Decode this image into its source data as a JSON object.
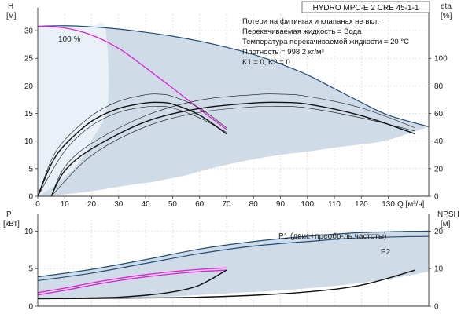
{
  "title": "HYDRO MPC-E 2 CRE 45-1-1",
  "notes": [
    "Потери на фитингах и клапанах не вкл.",
    "Перекачиваемая жидкость = Вода",
    "Температура перекачиваемой жидкости = 20 °C",
    "Плотность = 998.2 кг/м³",
    "K1 = 0, K2 = 0"
  ],
  "colors": {
    "range_fill": "#cfdbe6",
    "range_light": "#e9f0f7",
    "max_curve": "#1f4e79",
    "duty_curve": "#e020d8",
    "efficiency_curve": "#111111",
    "grid": "#cccccc"
  },
  "chart_data": [
    {
      "type": "line",
      "name": "qh",
      "xlabel": "Q [м³/ч]",
      "ylabel_left": "H\n[м]",
      "ylabel_right": "eta\n[%]",
      "xlim": [
        0,
        145
      ],
      "xticks": [
        0,
        10,
        20,
        30,
        40,
        50,
        60,
        70,
        80,
        90,
        100,
        110,
        120,
        130
      ],
      "ylim": [
        0,
        33
      ],
      "yticks": [
        0,
        5,
        10,
        15,
        20,
        25,
        30
      ],
      "y2lim": [
        0,
        132
      ],
      "y2ticks": [
        0,
        20,
        40,
        60,
        80,
        100
      ],
      "label_100": "100 %",
      "envelope_upper": {
        "x": [
          0,
          10,
          20,
          30,
          40,
          50,
          60,
          70,
          80,
          90,
          100,
          110,
          120,
          130,
          145
        ],
        "y": [
          30.8,
          30.9,
          30.7,
          30.3,
          29.7,
          29.0,
          28.1,
          27.0,
          25.7,
          24.0,
          22.0,
          19.5,
          17.0,
          14.7,
          12.6
        ]
      },
      "envelope_lower": {
        "x": [
          145,
          130,
          120,
          110,
          100,
          90,
          80,
          70,
          60,
          55,
          50,
          45,
          40,
          35,
          30,
          25,
          20,
          15,
          10,
          5,
          0
        ],
        "y": [
          12.6,
          10.2,
          9.4,
          8.8,
          8.1,
          7.5,
          6.7,
          5.7,
          4.5,
          3.8,
          3.3,
          2.8,
          2.4,
          2.1,
          1.7,
          1.3,
          0.95,
          0.6,
          0.35,
          0.12,
          0
        ]
      },
      "light_region": {
        "x": [
          0,
          5,
          10,
          15,
          20,
          25,
          26,
          20,
          15,
          10,
          5,
          0
        ],
        "y": [
          30.8,
          30.9,
          30.9,
          30.8,
          30.7,
          30.5,
          17.0,
          10.0,
          6.0,
          3.5,
          1.5,
          0
        ]
      },
      "series": [
        {
          "name": "max_curve",
          "style": "max",
          "x": [
            0,
            10,
            20,
            30,
            40,
            50,
            60,
            70,
            80,
            90,
            100,
            110,
            120,
            130,
            145
          ],
          "y": [
            30.8,
            30.9,
            30.7,
            30.3,
            29.7,
            29.0,
            28.1,
            27.0,
            25.7,
            24.0,
            22.0,
            19.5,
            17.0,
            14.7,
            12.6
          ]
        },
        {
          "name": "duty_curve",
          "style": "duty",
          "x": [
            0,
            10,
            20,
            30,
            40,
            50,
            60,
            70
          ],
          "y": [
            30.8,
            30.5,
            29.2,
            26.8,
            23.3,
            19.6,
            15.8,
            12.1
          ]
        },
        {
          "name": "eta_single_outer",
          "style": "thin",
          "x": [
            0,
            5,
            10,
            20,
            30,
            40,
            45,
            50,
            60,
            70
          ],
          "y": [
            0,
            6.5,
            10.2,
            14.6,
            17.2,
            18.4,
            18.5,
            18.1,
            16.0,
            12.4
          ]
        },
        {
          "name": "eta_single",
          "style": "thick",
          "x": [
            0,
            5,
            10,
            20,
            30,
            40,
            45,
            50,
            60,
            70
          ],
          "y": [
            0,
            5.8,
            9.3,
            13.6,
            15.9,
            16.9,
            17.0,
            16.7,
            14.7,
            11.3
          ]
        },
        {
          "name": "eta_single_inner",
          "style": "thin",
          "x": [
            0,
            10,
            20,
            30,
            40,
            45,
            50,
            60,
            70
          ],
          "y": [
            0,
            8.2,
            12.8,
            15.2,
            16.2,
            16.3,
            16.0,
            14.2,
            11.6
          ]
        },
        {
          "name": "eta_double_outer",
          "style": "thin",
          "x": [
            5,
            10,
            20,
            40,
            60,
            80,
            90,
            100,
            120,
            140
          ],
          "y": [
            0,
            5.3,
            9.6,
            14.6,
            17.4,
            18.4,
            18.5,
            18.1,
            16.0,
            12.4
          ]
        },
        {
          "name": "eta_double",
          "style": "thick",
          "x": [
            5,
            10,
            20,
            40,
            60,
            80,
            90,
            100,
            120,
            140
          ],
          "y": [
            0,
            4.6,
            8.6,
            13.5,
            15.9,
            16.9,
            17.0,
            16.7,
            14.6,
            11.3
          ]
        },
        {
          "name": "eta_double_inner",
          "style": "thin",
          "x": [
            5,
            20,
            40,
            60,
            80,
            90,
            100,
            120,
            140
          ],
          "y": [
            0,
            7.4,
            12.6,
            15.2,
            16.2,
            16.3,
            16.0,
            14.2,
            11.8
          ]
        }
      ]
    },
    {
      "type": "line",
      "name": "power",
      "xlim": [
        0,
        145
      ],
      "ylabel_left": "P\n[кВт]",
      "ylabel_right": "NPSH\n[м]",
      "ylim": [
        0,
        11.5
      ],
      "yticks": [
        0,
        5,
        10
      ],
      "y2lim": [
        0,
        23
      ],
      "y2ticks": [
        0,
        10,
        20
      ],
      "label_p1": "P1 (двиг.+преобр-ль частоты)",
      "label_p2": "P2",
      "envelope_upper": {
        "x": [
          0,
          20,
          40,
          60,
          80,
          100,
          120,
          145
        ],
        "y": [
          3.9,
          4.9,
          6.2,
          7.6,
          8.6,
          9.3,
          9.8,
          10.0
        ]
      },
      "envelope_lower": {
        "x": [
          145,
          130,
          110,
          90,
          70,
          55,
          45,
          35,
          25,
          15,
          0
        ],
        "y": [
          4.6,
          3.6,
          2.7,
          2.1,
          1.7,
          1.4,
          1.25,
          1.15,
          1.1,
          1.05,
          1.0
        ]
      },
      "series": [
        {
          "name": "P1",
          "style": "max",
          "x": [
            0,
            20,
            40,
            60,
            80,
            100,
            120,
            145
          ],
          "y": [
            3.9,
            4.9,
            6.2,
            7.6,
            8.6,
            9.3,
            9.8,
            10.0
          ]
        },
        {
          "name": "P2",
          "style": "max",
          "x": [
            0,
            20,
            40,
            60,
            80,
            100,
            120,
            145
          ],
          "y": [
            3.4,
            4.4,
            5.7,
            7.0,
            8.0,
            8.6,
            9.1,
            9.3
          ]
        },
        {
          "name": "P1_duty",
          "style": "duty",
          "x": [
            0,
            10,
            20,
            30,
            40,
            50,
            60,
            70
          ],
          "y": [
            1.8,
            2.4,
            3.1,
            3.7,
            4.2,
            4.6,
            4.9,
            5.1
          ]
        },
        {
          "name": "P2_duty",
          "style": "duty",
          "x": [
            0,
            10,
            20,
            30,
            40,
            50,
            60,
            70
          ],
          "y": [
            1.5,
            2.1,
            2.8,
            3.4,
            3.9,
            4.3,
            4.6,
            4.8
          ]
        },
        {
          "name": "npsh_single",
          "style": "thick",
          "axis": "y2",
          "x": [
            0,
            10,
            20,
            30,
            40,
            50,
            60,
            70
          ],
          "y": [
            2.0,
            2.05,
            2.2,
            2.4,
            2.9,
            3.8,
            5.6,
            9.6
          ]
        },
        {
          "name": "npsh_double",
          "style": "thick",
          "axis": "y2",
          "x": [
            0,
            20,
            40,
            60,
            80,
            100,
            120,
            140
          ],
          "y": [
            2.0,
            2.05,
            2.2,
            2.4,
            2.9,
            3.8,
            5.6,
            9.6
          ]
        }
      ]
    }
  ]
}
